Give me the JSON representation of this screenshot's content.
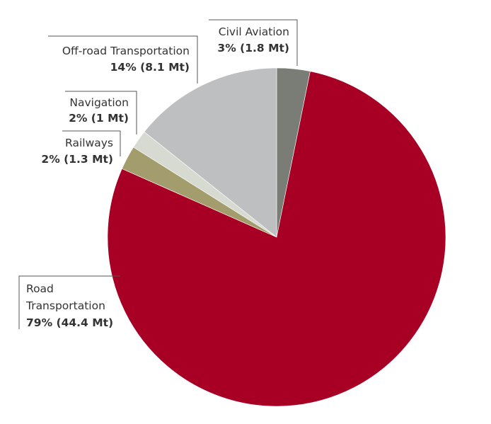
{
  "chart_data": {
    "type": "pie",
    "title": "",
    "start_angle_deg": 0,
    "direction": "clockwise",
    "slices": [
      {
        "name": "Civil Aviation",
        "name_lines": [
          "Civil Aviation"
        ],
        "percent": 3,
        "value_label": "3% (1.8 Mt)",
        "value": 1.8,
        "unit": "Mt",
        "color": "#7a7c76"
      },
      {
        "name": "Road Transportation",
        "name_lines": [
          "Road",
          "Transportation"
        ],
        "percent": 79,
        "value_label": "79% (44.4 Mt)",
        "value": 44.4,
        "unit": "Mt",
        "color": "#a80025"
      },
      {
        "name": "Railways",
        "name_lines": [
          "Railways"
        ],
        "percent": 2,
        "value_label": "2% (1.3 Mt)",
        "value": 1.3,
        "unit": "Mt",
        "color": "#a39c6c"
      },
      {
        "name": "Navigation",
        "name_lines": [
          "Navigation"
        ],
        "percent": 2,
        "value_label": "2% (1 Mt)",
        "value": 1.0,
        "unit": "Mt",
        "color": "#d6dad0"
      },
      {
        "name": "Off-road Transportation",
        "name_lines": [
          "Off-road Transportation"
        ],
        "percent": 14,
        "value_label": "14% (8.1 Mt)",
        "value": 8.1,
        "unit": "Mt",
        "color": "#bebfc1"
      }
    ]
  }
}
